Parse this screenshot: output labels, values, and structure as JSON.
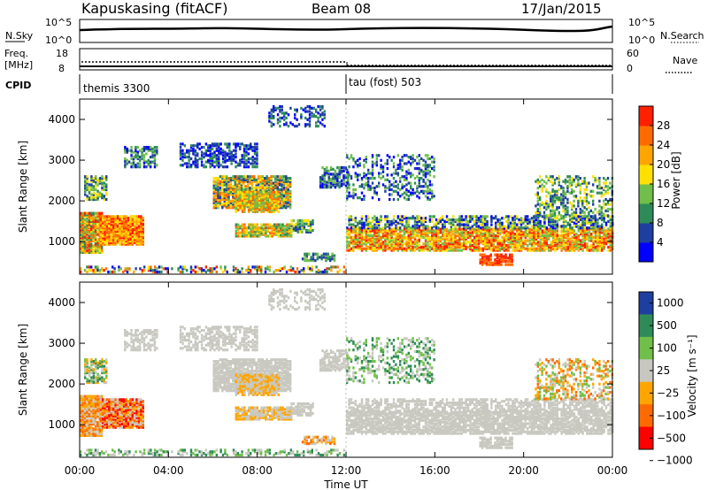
{
  "header": {
    "station": "Kapuskasing (fitACF)",
    "beam": "Beam 08",
    "date": "17/Jan/2015"
  },
  "top_panels": {
    "nsky_label": "N.Sky",
    "nsearch_label": "N.Search",
    "nsky_ticks": [
      "10^5",
      "10^0"
    ],
    "nsearch_ticks": [
      "10^5",
      "10^0"
    ],
    "freq_label": "Freq.",
    "freq_unit": "[MHz]",
    "freq_ticks": [
      "18",
      "8"
    ],
    "nave_label": "Nave",
    "nave_ticks": [
      "60",
      "0"
    ],
    "cpid_label": "CPID",
    "cpid_modes": [
      "themis 3300",
      "tau (fost) 503"
    ]
  },
  "colors": {
    "power_scale": [
      "#0000ff",
      "#1f3fa0",
      "#2e8b57",
      "#6fbf4a",
      "#ffe000",
      "#ffa500",
      "#ff6a00",
      "#ff2000"
    ],
    "velocity_scale": [
      "#1f3fa0",
      "#2e8b57",
      "#6fbf4a",
      "#c8c8c0",
      "#ffa500",
      "#ff6a00",
      "#ff0000"
    ]
  },
  "chart_data": [
    {
      "type": "heatmap",
      "name": "power",
      "ylabel": "Slant Range [km]",
      "ylim": [
        200,
        4500
      ],
      "yticks": [
        "1000",
        "2000",
        "3000",
        "4000"
      ],
      "xlim": [
        "00:00",
        "24:00"
      ],
      "colorbar_label": "Power [dB]",
      "colorbar_ticks": [
        "4",
        "8",
        "12",
        "16",
        "20",
        "24",
        "28"
      ],
      "colorbar_range": [
        0,
        32
      ]
    },
    {
      "type": "heatmap",
      "name": "velocity",
      "ylabel": "Slant Range [km]",
      "ylim": [
        200,
        4500
      ],
      "yticks": [
        "1000",
        "2000",
        "3000",
        "4000"
      ],
      "xlim": [
        "00:00",
        "24:00"
      ],
      "xticks": [
        "00:00",
        "04:00",
        "08:00",
        "12:00",
        "16:00",
        "20:00",
        "00:00"
      ],
      "xlabel": "Time UT",
      "colorbar_label": "Velocity [m s⁻¹]",
      "colorbar_ticks": [
        "1000",
        "500",
        "100",
        "25",
        "−25",
        "−100",
        "−500",
        "−1000"
      ]
    }
  ]
}
